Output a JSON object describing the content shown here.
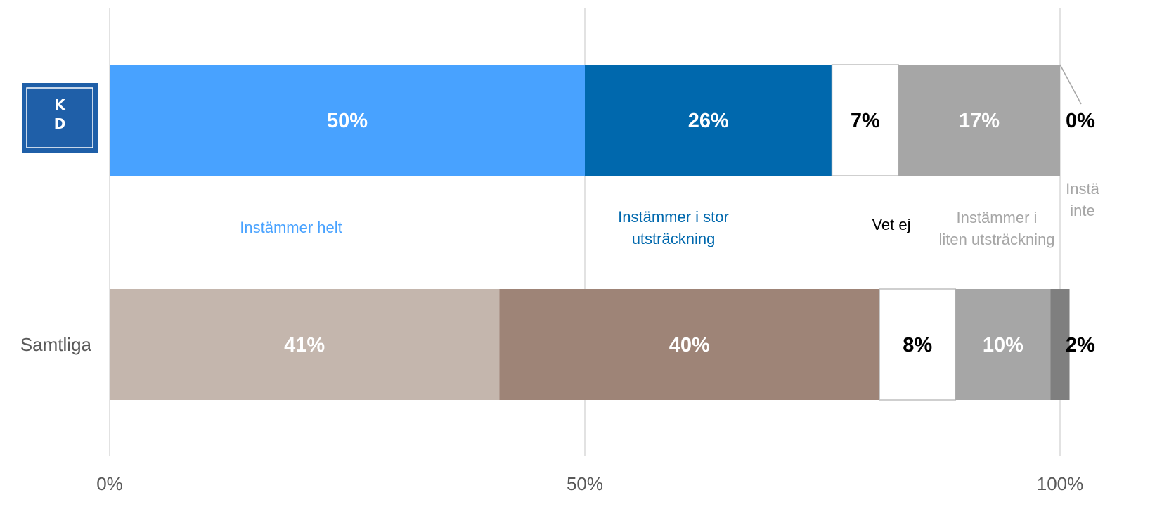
{
  "chart_data": {
    "type": "bar",
    "orientation": "horizontal",
    "stacked": true,
    "x_ticks": [
      "0%",
      "50%",
      "100%"
    ],
    "xlim": [
      0,
      100
    ],
    "grid": true,
    "rows": [
      {
        "label": "",
        "logo_text": [
          "K",
          "D"
        ],
        "logo_color": "#1f5fa8",
        "values": [
          50,
          26,
          7,
          17,
          0
        ],
        "value_labels": [
          "50%",
          "26%",
          "7%",
          "17%",
          "0%"
        ]
      },
      {
        "label": "Samtliga",
        "values": [
          41,
          40,
          8,
          10,
          2
        ],
        "value_labels": [
          "41%",
          "40%",
          "8%",
          "10%",
          "2%"
        ]
      }
    ],
    "series": [
      {
        "name": "Instämmer helt",
        "name_lines": [
          "Instämmer helt"
        ],
        "colors": [
          "#48a2ff",
          "#c4b6ad"
        ],
        "label_color": "#48a2ff",
        "value_label_colors": [
          "#ffffff",
          "#ffffff"
        ]
      },
      {
        "name": "Instämmer i stor utsträckning",
        "name_lines": [
          "Instämmer i stor",
          "utsträckning"
        ],
        "colors": [
          "#0068ad",
          "#9e8477"
        ],
        "label_color": "#0068ad",
        "value_label_colors": [
          "#ffffff",
          "#ffffff"
        ]
      },
      {
        "name": "Vet ej",
        "name_lines": [
          "Vet ej"
        ],
        "colors": [
          "#ffffff",
          "#ffffff"
        ],
        "label_color": "#000000",
        "value_label_colors": [
          "#000000",
          "#000000"
        ]
      },
      {
        "name": "Instämmer i liten utsträckning",
        "name_lines": [
          "Instämmer i",
          "liten utsträckning"
        ],
        "colors": [
          "#a6a6a6",
          "#a6a6a6"
        ],
        "label_color": "#a6a6a6",
        "value_label_colors": [
          "#ffffff",
          "#ffffff"
        ]
      },
      {
        "name": "Instämmer inte",
        "name_lines": [
          "Instä",
          "inte"
        ],
        "colors": [
          "#7f7f7f",
          "#7f7f7f"
        ],
        "label_color": "#a6a6a6",
        "value_label_colors": [
          "#000000",
          "#000000"
        ]
      }
    ]
  }
}
